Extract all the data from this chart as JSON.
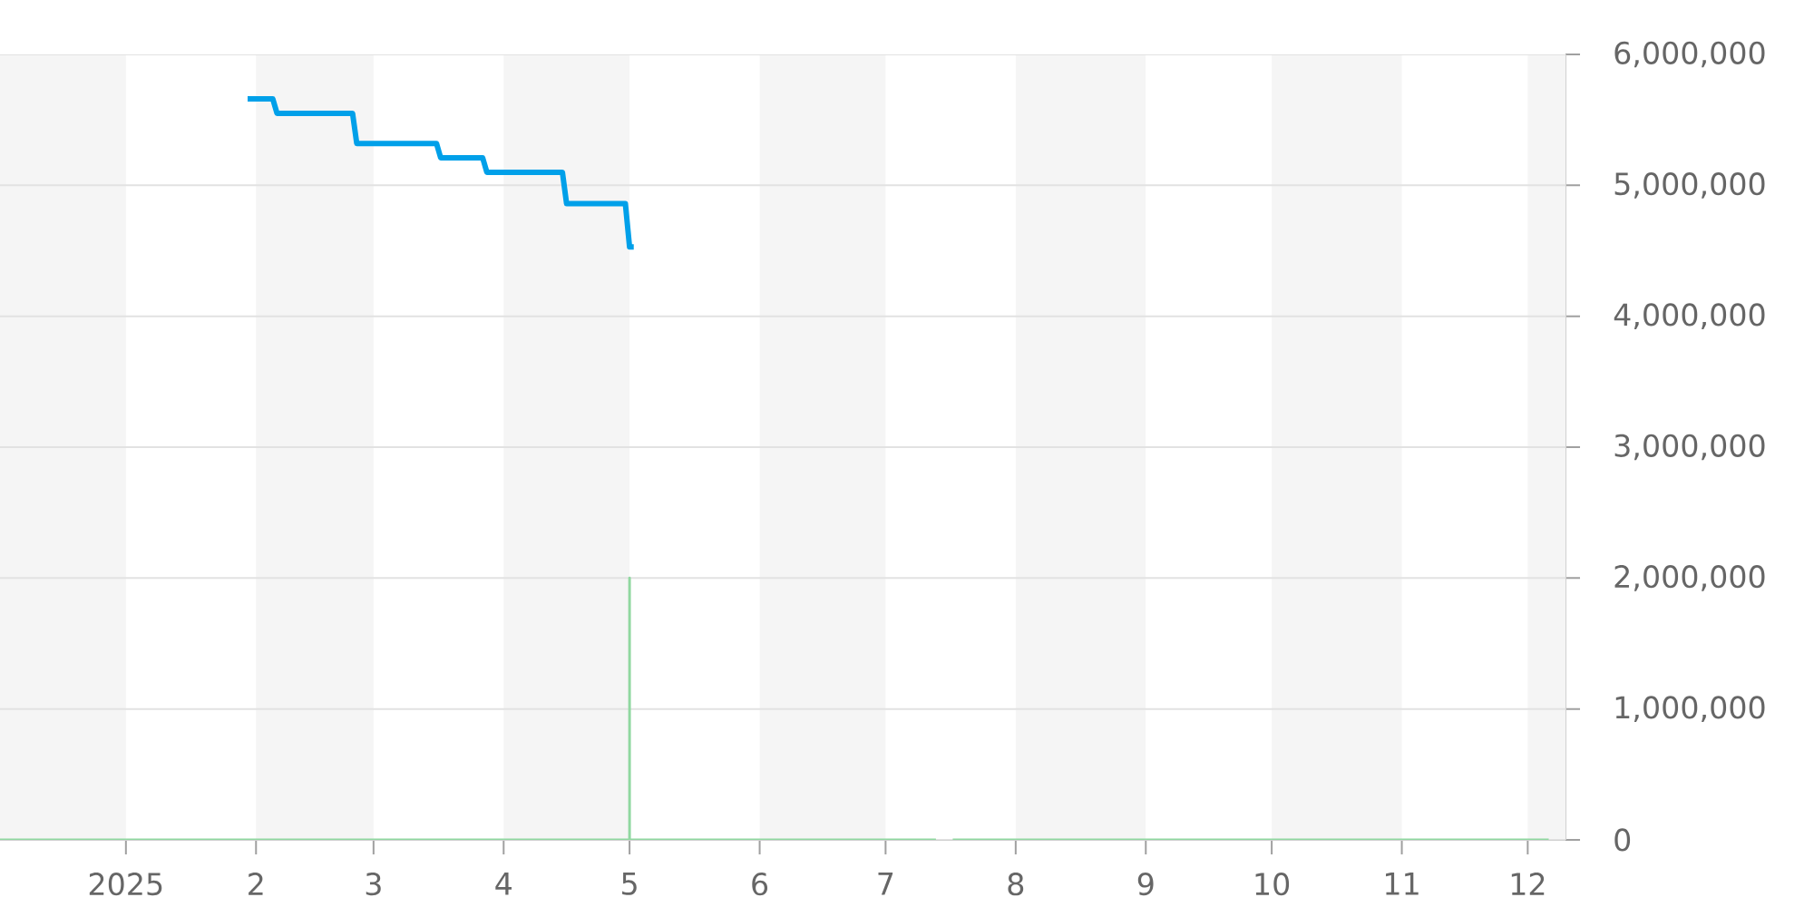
{
  "chart_data": {
    "type": "line",
    "series": [
      {
        "color": "#00a0e9",
        "x": [
          "2025-01-30",
          "2025-02-05",
          "2025-02-06",
          "2025-02-24",
          "2025-02-25",
          "2025-03-16",
          "2025-03-17",
          "2025-03-27",
          "2025-03-28",
          "2025-04-15",
          "2025-04-16",
          "2025-04-30",
          "2025-05-01",
          "2025-05-02"
        ],
        "values": [
          5660000,
          5660000,
          5550000,
          5550000,
          5320000,
          5320000,
          5210000,
          5210000,
          5100000,
          5100000,
          4860000,
          4860000,
          4530000,
          4530000
        ]
      },
      {
        "color": "#90d8a0",
        "x": [
          "2024-12-02",
          "2025-05-01",
          "2025-05-01",
          "2025-05-01",
          "2025-07-13",
          "2025-07-14",
          "2025-07-17",
          "2025-12-06"
        ],
        "values": [
          0,
          0,
          2000000,
          0,
          0,
          null,
          0,
          0
        ]
      }
    ],
    "xlim": [
      "2024-12-02",
      "2025-12-10"
    ],
    "xticks": [
      {
        "value": "2025-01-01",
        "label": "2025"
      },
      {
        "value": "2025-02-01",
        "label": "2"
      },
      {
        "value": "2025-03-01",
        "label": "3"
      },
      {
        "value": "2025-04-01",
        "label": "4"
      },
      {
        "value": "2025-05-01",
        "label": "5"
      },
      {
        "value": "2025-06-01",
        "label": "6"
      },
      {
        "value": "2025-07-01",
        "label": "7"
      },
      {
        "value": "2025-08-01",
        "label": "8"
      },
      {
        "value": "2025-09-01",
        "label": "9"
      },
      {
        "value": "2025-10-01",
        "label": "10"
      },
      {
        "value": "2025-11-01",
        "label": "11"
      },
      {
        "value": "2025-12-01",
        "label": "12"
      }
    ],
    "ylim": [
      0,
      6000000
    ],
    "yticks": [
      0,
      {
        "value": 1000000,
        "label": "1,000,000"
      },
      {
        "value": 2000000,
        "label": "2,000,000"
      },
      {
        "value": 3000000,
        "label": "3,000,000"
      },
      {
        "value": 4000000,
        "label": "4,000,000"
      },
      {
        "value": 5000000,
        "label": "5,000,000"
      },
      {
        "value": 6000000,
        "label": "6,000,000"
      }
    ],
    "grid": "y",
    "bands": [
      {
        "axis": "x",
        "from": "2024-12-02",
        "to": "2025-01-01",
        "color": "#f5f5f5"
      },
      {
        "axis": "x",
        "from": "2025-02-01",
        "to": "2025-03-01",
        "color": "#f5f5f5"
      },
      {
        "axis": "x",
        "from": "2025-04-01",
        "to": "2025-05-01",
        "color": "#f5f5f5"
      },
      {
        "axis": "x",
        "from": "2025-06-01",
        "to": "2025-07-01",
        "color": "#f5f5f5"
      },
      {
        "axis": "x",
        "from": "2025-08-01",
        "to": "2025-09-01",
        "color": "#f5f5f5"
      },
      {
        "axis": "x",
        "from": "2025-10-01",
        "to": "2025-11-01",
        "color": "#f5f5f5"
      },
      {
        "axis": "x",
        "from": "2025-12-01",
        "to": "2025-12-10",
        "color": "#f5f5f5"
      }
    ]
  }
}
